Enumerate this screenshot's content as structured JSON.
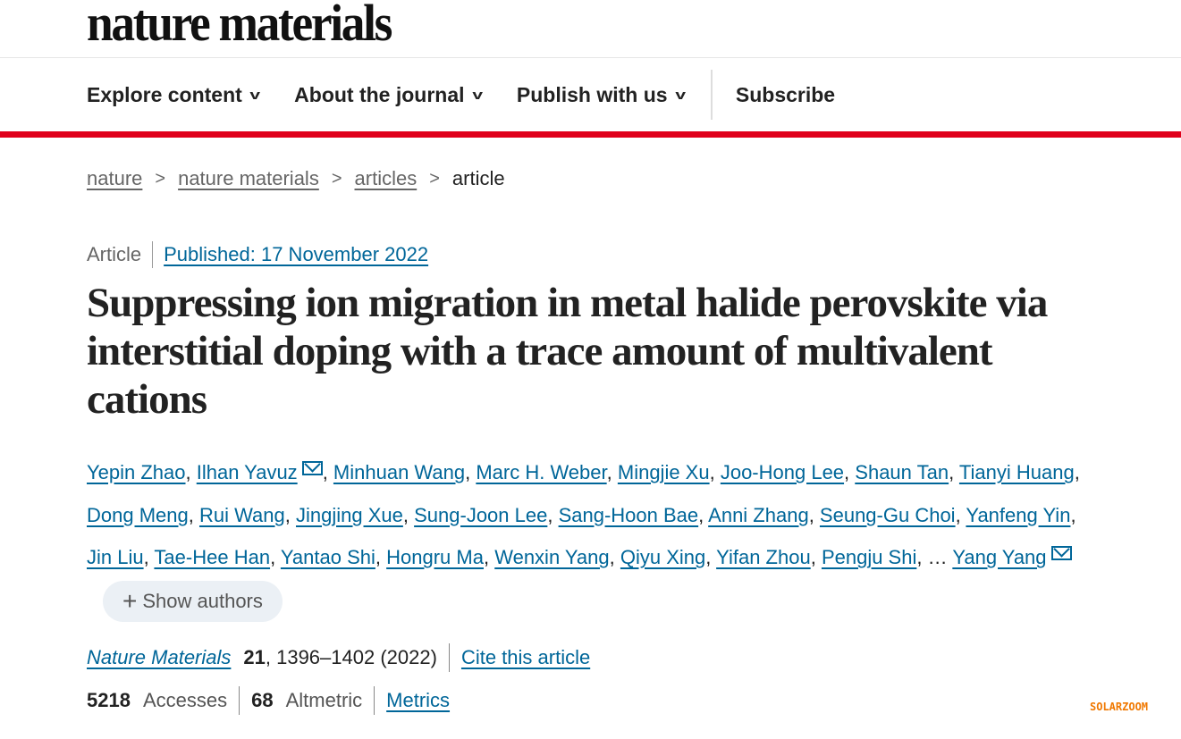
{
  "site": {
    "logo": "nature materials"
  },
  "nav": {
    "items": [
      "Explore content",
      "About the journal",
      "Publish with us"
    ],
    "subscribe": "Subscribe"
  },
  "breadcrumb": [
    "nature",
    "nature materials",
    "articles",
    "article"
  ],
  "article": {
    "type": "Article",
    "published": "Published: 17 November 2022",
    "title": "Suppressing ion migration in metal halide perovskite via interstitial doping with a trace amount of multivalent cations",
    "authors": [
      "Yepin Zhao",
      "Ilhan Yavuz",
      "Minhuan Wang",
      "Marc H. Weber",
      "Mingjie Xu",
      "Joo-Hong Lee",
      "Shaun Tan",
      "Tianyi Huang",
      "Dong Meng",
      "Rui Wang",
      "Jingjing Xue",
      "Sung-Joon Lee",
      "Sang-Hoon Bae",
      "Anni Zhang",
      "Seung-Gu Choi",
      "Yanfeng Yin",
      "Jin Liu",
      "Tae-Hee Han",
      "Yantao Shi",
      "Hongru Ma",
      "Wenxin Yang",
      "Qiyu Xing",
      "Yifan Zhou",
      "Pengju Shi"
    ],
    "ellipsis": "…",
    "last_author": "Yang Yang",
    "show_authors": "Show authors",
    "journal": "Nature Materials",
    "volume": "21",
    "pages": ", 1396–1402 (2022)",
    "cite": "Cite this article",
    "accesses": "5218",
    "accesses_label": "Accesses",
    "altmetric": "68",
    "altmetric_label": "Altmetric",
    "metrics": "Metrics"
  },
  "watermark": "SOLARZOOM",
  "colors": {
    "accent_red": "#e0001b",
    "link": "#006699",
    "watermark": "#f07800"
  }
}
